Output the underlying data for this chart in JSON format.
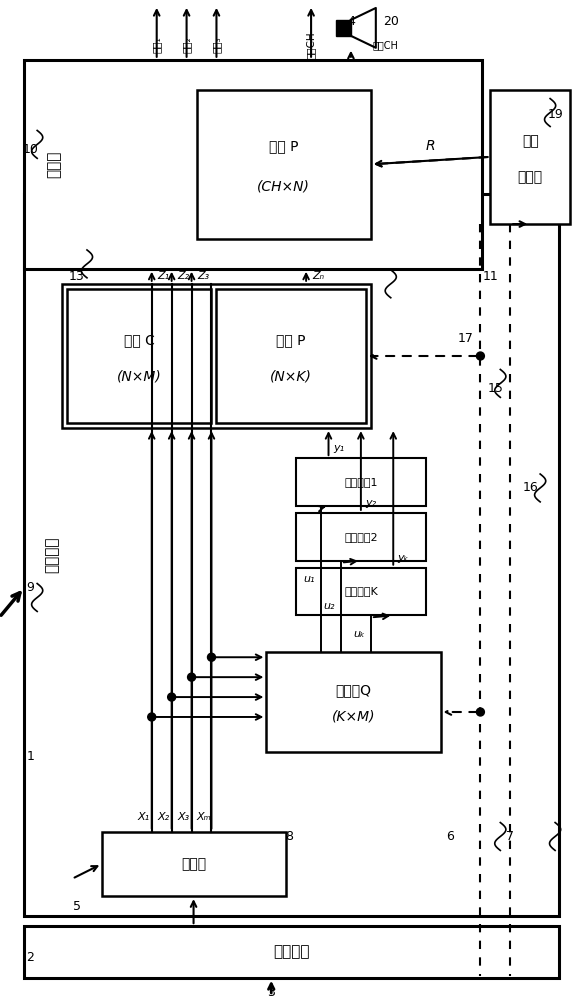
{
  "bg_color": "#ffffff",
  "line_color": "#000000",
  "fig_width": 5.81,
  "fig_height": 10.0,
  "dpi": 100,
  "labels": {
    "demux": "解复用器",
    "decoder": "解码器",
    "prematrix1": "预矩阵Q",
    "prematrix2": "(K×M)",
    "decorr1": "解相关器1",
    "decorr2": "解相关器2",
    "decorrK": "解相关器K",
    "transC1": "变换 C",
    "transC2": "(N×M)",
    "transP1": "变换 P",
    "transP2": "(N×K)",
    "renderer": "渲染器",
    "transPU1": "变换 P",
    "transPU2": "(CH×N)",
    "matrix_gen1": "矩阵",
    "matrix_gen2": "生成器",
    "rebuild": "重建模块",
    "out1": "输出₁",
    "out2": "输出₂",
    "out3": "输出₃",
    "outCH": "输出CH",
    "z1": "Z₁",
    "z2": "Z₂",
    "z3": "Z₃",
    "zN": "Zₙ",
    "y1": "y₁",
    "y2": "y₂",
    "yK": "yₖ",
    "u1": "u₁",
    "u2": "u₂",
    "uK": "uₖ",
    "x1": "X₁",
    "x2": "X₂",
    "x3": "X₃",
    "xM": "Xₘ",
    "R": "R"
  }
}
